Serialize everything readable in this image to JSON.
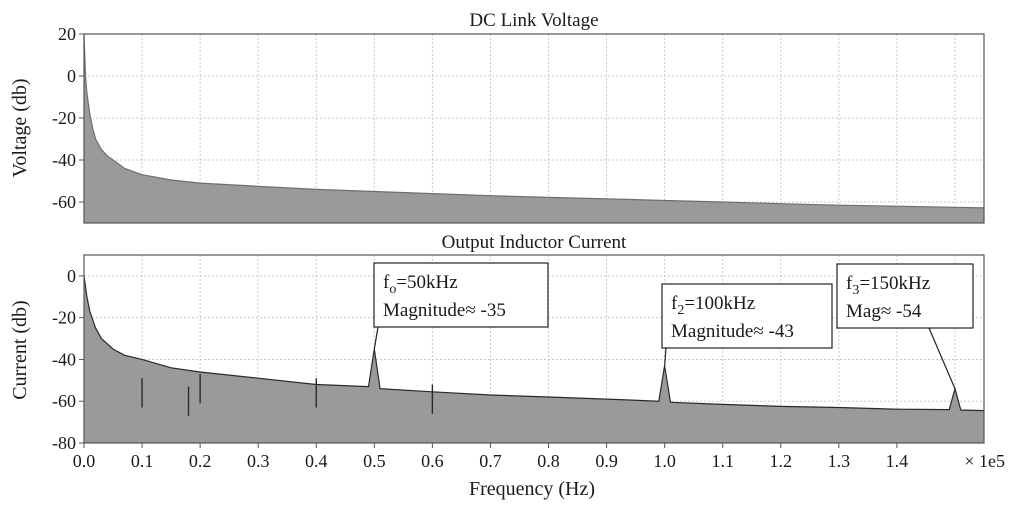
{
  "chart_data": [
    {
      "type": "area",
      "title": "DC Link Voltage",
      "ylabel": "Voltage (db)",
      "xlabel": "",
      "xlim": [
        0,
        155000
      ],
      "ylim": [
        -70,
        20
      ],
      "yticks": [
        20,
        0,
        -20,
        -40,
        -60
      ],
      "grid": true,
      "fill_color": "#9a9a9a",
      "line_color": "#6e6e6e",
      "series": [
        {
          "x": [
            0,
            250,
            500,
            1000,
            1500,
            2000,
            3000,
            4000,
            5000,
            7000,
            10000,
            15000,
            20000,
            30000,
            40000,
            50000,
            60000,
            70000,
            80000,
            90000,
            100000,
            110000,
            120000,
            130000,
            140000,
            150000,
            155000
          ],
          "y": [
            20,
            0,
            -8,
            -18,
            -25,
            -30,
            -35,
            -38,
            -40,
            -44,
            -47,
            -49.5,
            -51,
            -52.5,
            -54,
            -55,
            -56,
            -57,
            -57.8,
            -58.5,
            -59.3,
            -60,
            -60.8,
            -61.5,
            -62,
            -62.5,
            -62.8
          ]
        }
      ]
    },
    {
      "type": "area",
      "title": "Output Inductor Current",
      "ylabel": "Current (db)",
      "xlabel": "Frequency (Hz)",
      "xlim": [
        0,
        155000
      ],
      "ylim": [
        -80,
        10
      ],
      "yticks": [
        0,
        -20,
        -40,
        -60,
        -80
      ],
      "xticks": [
        0,
        10000,
        20000,
        30000,
        40000,
        50000,
        60000,
        70000,
        80000,
        90000,
        100000,
        110000,
        120000,
        130000,
        140000
      ],
      "xtick_labels": [
        "0.0",
        "0.1",
        "0.2",
        "0.3",
        "0.4",
        "0.5",
        "0.6",
        "0.7",
        "0.8",
        "0.9",
        "1.0",
        "1.1",
        "1.2",
        "1.3",
        "1.4"
      ],
      "x_multiplier": "× 1e5",
      "grid": true,
      "fill_color": "#9a9a9a",
      "line_color": "#2a2a2a",
      "series": [
        {
          "x": [
            0,
            500,
            1000,
            2000,
            3000,
            5000,
            7000,
            10000,
            15000,
            20000,
            30000,
            40000,
            49000,
            50000,
            51000,
            60000,
            70000,
            80000,
            90000,
            99000,
            100000,
            101000,
            110000,
            120000,
            130000,
            140000,
            149000,
            150000,
            151000,
            155000
          ],
          "y": [
            0,
            -10,
            -17,
            -25,
            -30,
            -35,
            -38,
            -40,
            -44,
            -46,
            -49,
            -52,
            -53,
            -35,
            -54,
            -55.5,
            -57,
            -58,
            -59,
            -60,
            -43,
            -60.5,
            -61.5,
            -62.5,
            -63,
            -63.8,
            -64,
            -54,
            -64.2,
            -64.5
          ]
        }
      ],
      "dips": [
        {
          "x": 10000,
          "y": -63
        },
        {
          "x": 18000,
          "y": -67
        },
        {
          "x": 20000,
          "y": -61
        },
        {
          "x": 40000,
          "y": -63
        },
        {
          "x": 60000,
          "y": -66
        }
      ],
      "annotations": [
        {
          "main": "f",
          "sub": "o",
          "rest": "=50kHz",
          "line2": "Magnitude≈ -35",
          "x": 50000,
          "y": -35
        },
        {
          "main": "f",
          "sub": "2",
          "rest": "=100kHz",
          "line2": "Magnitude≈ -43",
          "x": 100000,
          "y": -43
        },
        {
          "main": "f",
          "sub": "3",
          "rest": "=150kHz",
          "line2": "Mag≈ -54",
          "x": 150000,
          "y": -54
        }
      ]
    }
  ]
}
